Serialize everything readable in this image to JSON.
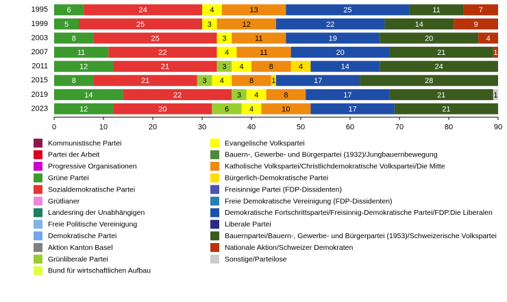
{
  "chart_data": {
    "type": "stacked-bar-horizontal",
    "categories": [
      "1995",
      "1999",
      "2003",
      "2007",
      "2011",
      "2015",
      "2019",
      "2023"
    ],
    "xlim": [
      0,
      90
    ],
    "xticks": [
      0,
      10,
      20,
      30,
      40,
      50,
      60,
      70,
      80,
      90
    ],
    "series": [
      {
        "name": "Kommunistische Partei",
        "color": "#8b1a4b",
        "values": [
          null,
          null,
          null,
          null,
          null,
          null,
          null,
          null
        ]
      },
      {
        "name": "Partei der Arbeit",
        "color": "#d9001c",
        "values": [
          null,
          null,
          null,
          null,
          null,
          null,
          null,
          null
        ]
      },
      {
        "name": "Progressive Organisationen",
        "color": "#cc00cc",
        "values": [
          null,
          null,
          null,
          null,
          null,
          null,
          null,
          null
        ]
      },
      {
        "name": "Grüne Partei",
        "color": "#3c9a2f",
        "values": [
          6,
          5,
          8,
          11,
          12,
          8,
          14,
          12
        ]
      },
      {
        "name": "Sozialdemokratische Partei",
        "color": "#e53434",
        "values": [
          24,
          25,
          25,
          22,
          21,
          21,
          22,
          20
        ]
      },
      {
        "name": "Grütlianer",
        "color": "#ee88dd",
        "values": [
          null,
          null,
          null,
          null,
          null,
          null,
          null,
          null
        ]
      },
      {
        "name": "Landesring der Unabhängigen",
        "color": "#1a8060",
        "values": [
          null,
          null,
          null,
          null,
          null,
          null,
          null,
          null
        ]
      },
      {
        "name": "Freie Politische Vereinigung",
        "color": "#80b4e4",
        "values": [
          null,
          null,
          null,
          null,
          null,
          null,
          null,
          null
        ]
      },
      {
        "name": "Demokratische Partei",
        "color": "#6fa8ee",
        "values": [
          null,
          null,
          null,
          null,
          null,
          null,
          null,
          null
        ]
      },
      {
        "name": "Aktion Kanton Basel",
        "color": "#808080",
        "values": [
          null,
          null,
          null,
          null,
          null,
          null,
          null,
          null
        ]
      },
      {
        "name": "Grünliberale Partei",
        "color": "#9acd32",
        "values": [
          null,
          null,
          null,
          null,
          3,
          3,
          3,
          6
        ]
      },
      {
        "name": "Bund für wirtschaftlichen Aufbau",
        "color": "#e0ff44",
        "values": [
          null,
          null,
          null,
          null,
          null,
          null,
          null,
          null
        ]
      },
      {
        "name": "Evangelische Volkspartei",
        "color": "#ffff00",
        "values": [
          4,
          3,
          3,
          4,
          4,
          4,
          4,
          4
        ]
      },
      {
        "name": "Bauern-, Gewerbe- und Bürgerpartei (1932)/Jungbauernbewegung",
        "color": "#4e8a3a",
        "values": [
          null,
          null,
          null,
          null,
          null,
          null,
          null,
          null
        ]
      },
      {
        "name": "Katholische Volkspartei/Christlichdemokratische Volkspartei/Die Mitte",
        "color": "#ee8a10",
        "values": [
          13,
          12,
          11,
          11,
          8,
          8,
          8,
          10
        ]
      },
      {
        "name": "Bürgerlich-Demokratische Partei",
        "color": "#ffdd00",
        "values": [
          null,
          null,
          null,
          null,
          4,
          1,
          null,
          null
        ]
      },
      {
        "name": "Freisinnige Partei (FDP-Dissidenten)",
        "color": "#5050b0",
        "values": [
          null,
          null,
          null,
          null,
          null,
          null,
          null,
          null
        ]
      },
      {
        "name": "Freie Demokratische Vereinigung (FDP-Dissidenten)",
        "color": "#2a80b0",
        "values": [
          null,
          null,
          null,
          null,
          null,
          null,
          null,
          null
        ]
      },
      {
        "name": "Demokratische Fortschrittspartei/Freisinnig-Demokratische Partei/FDP.Die Liberalen",
        "color": "#1f4ea8",
        "values": [
          25,
          22,
          19,
          20,
          14,
          17,
          17,
          17
        ]
      },
      {
        "name": "Liberale Partei",
        "color": "#2a2a80",
        "values": [
          null,
          null,
          null,
          null,
          null,
          null,
          null,
          null
        ]
      },
      {
        "name": "Bauernpartei/Bauern-, Gewerbe- und Bürgerpartei (1953)/Schweizerische Volkspartei",
        "color": "#3a5a1e",
        "values": [
          11,
          14,
          20,
          21,
          24,
          28,
          21,
          21
        ]
      },
      {
        "name": "Nationale Aktion/Schweizer Demokraten",
        "color": "#b8330a",
        "values": [
          7,
          9,
          4,
          1,
          null,
          null,
          null,
          null
        ]
      },
      {
        "name": "Sonstige/Parteilose",
        "color": "#cccccc",
        "values": [
          null,
          null,
          null,
          null,
          null,
          null,
          1,
          null
        ]
      }
    ],
    "legend": "bottom"
  }
}
